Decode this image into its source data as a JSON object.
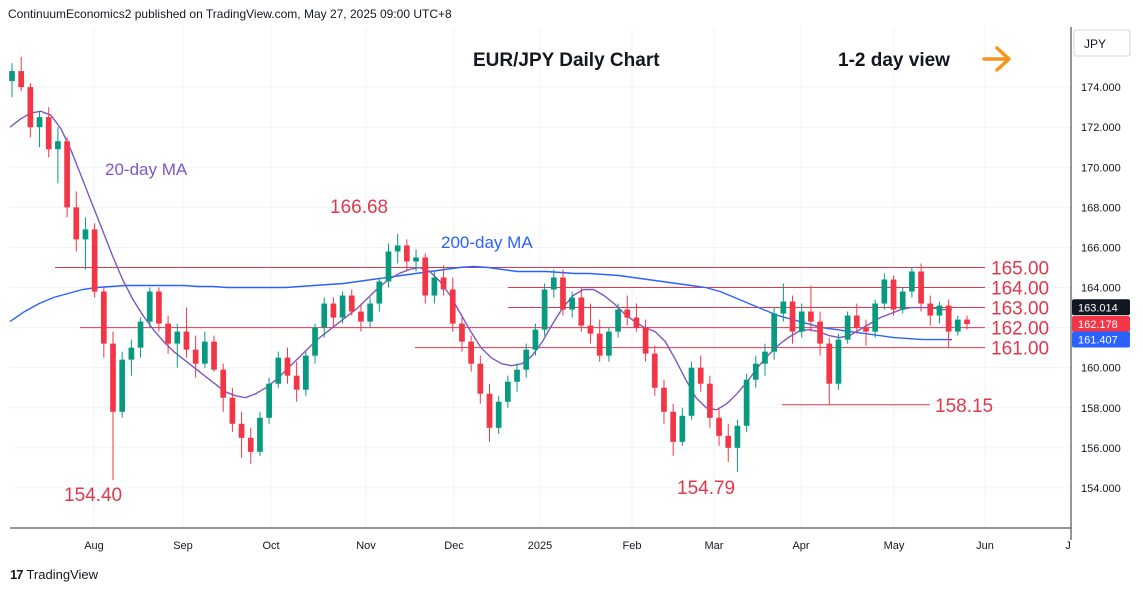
{
  "header": {
    "publisher_line": "ContinuumEconomics2 published on TradingView.com, May 27, 2025 09:00 UTC+8"
  },
  "footer": {
    "brand": "TradingView",
    "logo_text": "17"
  },
  "chart_data": {
    "type": "candlestick",
    "title": "EUR/JPY Daily Chart",
    "view_label": "1-2 day view",
    "view_icon": "arrow-right-icon",
    "currency_label": "JPY",
    "ylim": [
      152.0,
      177.0
    ],
    "y_ticks": [
      "154.000",
      "156.000",
      "158.000",
      "160.000",
      "162.000",
      "164.000",
      "166.000",
      "168.000",
      "170.000",
      "172.000",
      "174.000"
    ],
    "x_ticks": [
      "Aug",
      "Sep",
      "Oct",
      "Nov",
      "Dec",
      "2025",
      "Feb",
      "Mar",
      "Apr",
      "May",
      "Jun",
      "J"
    ],
    "ma_labels": {
      "ma20": "20-day MA",
      "ma200": "200-day MA"
    },
    "levels": [
      {
        "value": 165.0,
        "label": "165.00"
      },
      {
        "value": 164.0,
        "label": "164.00"
      },
      {
        "value": 163.0,
        "label": "163.00"
      },
      {
        "value": 162.0,
        "label": "162.00"
      },
      {
        "value": 161.0,
        "label": "161.00"
      },
      {
        "value": 158.15,
        "label": "158.15"
      }
    ],
    "annotations": [
      {
        "label": "166.68",
        "value": 166.68
      },
      {
        "label": "154.40",
        "value": 154.4
      },
      {
        "label": "154.79",
        "value": 154.79
      }
    ],
    "price_tags": [
      {
        "label": "163.014",
        "value": 163.014,
        "color": "#131722"
      },
      {
        "label": "162.178",
        "value": 162.178,
        "color": "#f23645"
      },
      {
        "label": "161.407",
        "value": 161.407,
        "color": "#2962ff"
      }
    ],
    "ma20": [
      172.0,
      172.4,
      172.7,
      172.8,
      172.6,
      171.9,
      170.8,
      169.5,
      168.2,
      166.9,
      165.6,
      164.4,
      163.4,
      162.6,
      161.9,
      161.3,
      160.8,
      160.4,
      160.0,
      159.6,
      159.2,
      158.8,
      158.6,
      158.5,
      158.7,
      159.0,
      159.4,
      159.9,
      160.4,
      160.9,
      161.4,
      161.8,
      162.2,
      162.6,
      163.0,
      163.5,
      164.0,
      164.4,
      164.7,
      164.9,
      165.0,
      164.8,
      164.3,
      163.6,
      162.7,
      161.8,
      161.0,
      160.5,
      160.2,
      160.1,
      160.2,
      160.6,
      161.3,
      162.2,
      163.0,
      163.6,
      163.9,
      163.9,
      163.6,
      163.2,
      162.7,
      162.3,
      162.0,
      161.8,
      161.3,
      160.4,
      159.4,
      158.5,
      158.0,
      157.9,
      158.2,
      158.7,
      159.3,
      160.0,
      160.6,
      161.1,
      161.5,
      161.8,
      161.9,
      161.8,
      161.6,
      161.5,
      161.6,
      161.9,
      162.2,
      162.5,
      162.7,
      162.9,
      163.0,
      163.0,
      163.0,
      162.9,
      162.9
    ],
    "ma200": [
      162.3,
      162.8,
      163.2,
      163.5,
      163.7,
      163.9,
      164.0,
      164.05,
      164.1,
      164.1,
      164.1,
      164.1,
      164.1,
      164.05,
      164.05,
      164.0,
      164.0,
      164.0,
      164.0,
      164.0,
      164.05,
      164.1,
      164.15,
      164.2,
      164.3,
      164.4,
      164.5,
      164.6,
      164.7,
      164.8,
      164.9,
      165.0,
      165.05,
      165.0,
      164.9,
      164.8,
      164.8,
      164.8,
      164.75,
      164.7,
      164.7,
      164.65,
      164.6,
      164.5,
      164.4,
      164.3,
      164.2,
      164.1,
      164.0,
      163.8,
      163.5,
      163.2,
      162.9,
      162.6,
      162.4,
      162.2,
      162.0,
      161.9,
      161.8,
      161.7,
      161.6,
      161.5,
      161.45,
      161.4,
      161.4,
      161.4
    ],
    "candles": [
      [
        174.3,
        175.2,
        173.5,
        174.8
      ],
      [
        174.8,
        175.5,
        173.8,
        174.0
      ],
      [
        174.0,
        174.2,
        171.5,
        172.0
      ],
      [
        172.0,
        172.8,
        171.0,
        172.5
      ],
      [
        172.5,
        173.0,
        170.5,
        170.9
      ],
      [
        170.9,
        172.0,
        169.2,
        171.3
      ],
      [
        171.3,
        171.5,
        167.5,
        168.0
      ],
      [
        168.0,
        168.8,
        165.8,
        166.4
      ],
      [
        166.4,
        167.5,
        164.9,
        166.9
      ],
      [
        166.9,
        167.2,
        163.5,
        163.8
      ],
      [
        163.8,
        164.0,
        160.5,
        161.2
      ],
      [
        161.2,
        161.8,
        154.4,
        157.8
      ],
      [
        157.8,
        160.8,
        157.5,
        160.4
      ],
      [
        160.4,
        161.4,
        159.6,
        161.0
      ],
      [
        161.0,
        162.5,
        160.5,
        162.3
      ],
      [
        162.3,
        164.0,
        162.0,
        163.8
      ],
      [
        163.8,
        164.0,
        161.8,
        162.2
      ],
      [
        162.2,
        162.6,
        160.7,
        161.2
      ],
      [
        161.2,
        162.2,
        160.0,
        161.8
      ],
      [
        161.8,
        163.0,
        160.5,
        160.9
      ],
      [
        160.9,
        161.6,
        159.5,
        160.2
      ],
      [
        160.2,
        161.8,
        160.0,
        161.3
      ],
      [
        161.3,
        161.6,
        159.8,
        159.9
      ],
      [
        159.9,
        160.2,
        157.8,
        158.5
      ],
      [
        158.5,
        159.0,
        156.8,
        157.2
      ],
      [
        157.2,
        157.8,
        155.5,
        156.5
      ],
      [
        156.5,
        157.0,
        155.2,
        155.8
      ],
      [
        155.8,
        157.8,
        155.6,
        157.5
      ],
      [
        157.5,
        159.5,
        157.2,
        159.2
      ],
      [
        159.2,
        160.8,
        159.0,
        160.5
      ],
      [
        160.5,
        161.0,
        159.2,
        159.6
      ],
      [
        159.6,
        160.3,
        158.3,
        158.9
      ],
      [
        158.9,
        160.8,
        158.6,
        160.6
      ],
      [
        160.6,
        162.2,
        160.2,
        162.0
      ],
      [
        162.0,
        163.5,
        161.5,
        163.2
      ],
      [
        163.2,
        163.5,
        162.0,
        162.5
      ],
      [
        162.5,
        163.8,
        162.2,
        163.6
      ],
      [
        163.6,
        163.9,
        162.6,
        162.8
      ],
      [
        162.8,
        163.2,
        161.8,
        162.3
      ],
      [
        162.3,
        163.5,
        162.0,
        163.2
      ],
      [
        163.2,
        164.5,
        162.8,
        164.3
      ],
      [
        164.3,
        166.2,
        164.0,
        165.8
      ],
      [
        165.8,
        166.68,
        165.2,
        166.1
      ],
      [
        166.1,
        166.4,
        164.8,
        165.3
      ],
      [
        165.3,
        165.9,
        164.8,
        165.5
      ],
      [
        165.5,
        165.7,
        163.2,
        163.6
      ],
      [
        163.6,
        164.8,
        163.2,
        164.5
      ],
      [
        164.5,
        165.1,
        163.6,
        163.9
      ],
      [
        163.9,
        164.5,
        161.8,
        162.2
      ],
      [
        162.2,
        162.5,
        160.8,
        161.3
      ],
      [
        161.3,
        161.6,
        159.8,
        160.2
      ],
      [
        160.2,
        160.6,
        158.2,
        158.7
      ],
      [
        158.7,
        159.2,
        156.3,
        157.0
      ],
      [
        157.0,
        158.6,
        156.7,
        158.3
      ],
      [
        158.3,
        159.6,
        158.0,
        159.3
      ],
      [
        159.3,
        160.2,
        158.8,
        159.9
      ],
      [
        159.9,
        161.2,
        159.5,
        160.9
      ],
      [
        160.9,
        162.2,
        160.6,
        161.9
      ],
      [
        161.9,
        164.2,
        161.6,
        163.9
      ],
      [
        163.9,
        164.9,
        163.5,
        164.5
      ],
      [
        164.5,
        164.9,
        162.6,
        162.9
      ],
      [
        162.9,
        163.8,
        162.5,
        163.5
      ],
      [
        163.5,
        164.0,
        161.8,
        162.1
      ],
      [
        162.1,
        163.2,
        161.2,
        161.7
      ],
      [
        161.7,
        162.4,
        160.3,
        160.6
      ],
      [
        160.6,
        162.0,
        160.3,
        161.8
      ],
      [
        161.8,
        163.2,
        161.5,
        162.9
      ],
      [
        162.9,
        163.6,
        162.1,
        162.5
      ],
      [
        162.5,
        163.2,
        161.8,
        162.0
      ],
      [
        162.0,
        162.4,
        160.3,
        160.7
      ],
      [
        160.7,
        161.1,
        158.6,
        159.0
      ],
      [
        159.0,
        159.4,
        157.2,
        157.8
      ],
      [
        157.8,
        158.2,
        155.6,
        156.3
      ],
      [
        156.3,
        158.0,
        156.1,
        157.6
      ],
      [
        157.6,
        160.3,
        157.4,
        160.0
      ],
      [
        160.0,
        160.6,
        158.8,
        159.2
      ],
      [
        159.2,
        159.6,
        157.0,
        157.5
      ],
      [
        157.5,
        158.0,
        156.1,
        156.6
      ],
      [
        156.6,
        157.2,
        155.3,
        156.0
      ],
      [
        156.0,
        157.4,
        154.79,
        157.1
      ],
      [
        157.1,
        159.7,
        156.8,
        159.4
      ],
      [
        159.4,
        160.6,
        159.0,
        160.2
      ],
      [
        160.2,
        161.2,
        159.6,
        160.8
      ],
      [
        160.8,
        163.0,
        160.4,
        162.7
      ],
      [
        162.7,
        164.2,
        162.3,
        163.3
      ],
      [
        163.3,
        163.6,
        161.2,
        161.8
      ],
      [
        161.8,
        163.2,
        161.5,
        162.8
      ],
      [
        162.8,
        164.1,
        161.8,
        162.3
      ],
      [
        162.3,
        162.8,
        160.6,
        161.2
      ],
      [
        161.2,
        161.5,
        158.15,
        159.2
      ],
      [
        159.2,
        161.7,
        158.9,
        161.4
      ],
      [
        161.4,
        162.8,
        161.2,
        162.6
      ],
      [
        162.6,
        163.2,
        161.7,
        162.0
      ],
      [
        162.0,
        162.4,
        161.1,
        161.8
      ],
      [
        161.8,
        163.4,
        161.5,
        163.2
      ],
      [
        163.2,
        164.7,
        162.9,
        164.4
      ],
      [
        164.4,
        164.6,
        162.6,
        162.9
      ],
      [
        162.9,
        164.0,
        162.7,
        163.8
      ],
      [
        163.8,
        165.0,
        163.5,
        164.8
      ],
      [
        164.8,
        165.2,
        162.8,
        163.2
      ],
      [
        163.2,
        163.6,
        162.1,
        162.6
      ],
      [
        162.6,
        163.3,
        162.2,
        163.1
      ],
      [
        163.1,
        163.4,
        161.0,
        161.8
      ],
      [
        161.8,
        162.6,
        161.6,
        162.4
      ],
      [
        162.4,
        162.6,
        161.9,
        162.178
      ]
    ]
  }
}
